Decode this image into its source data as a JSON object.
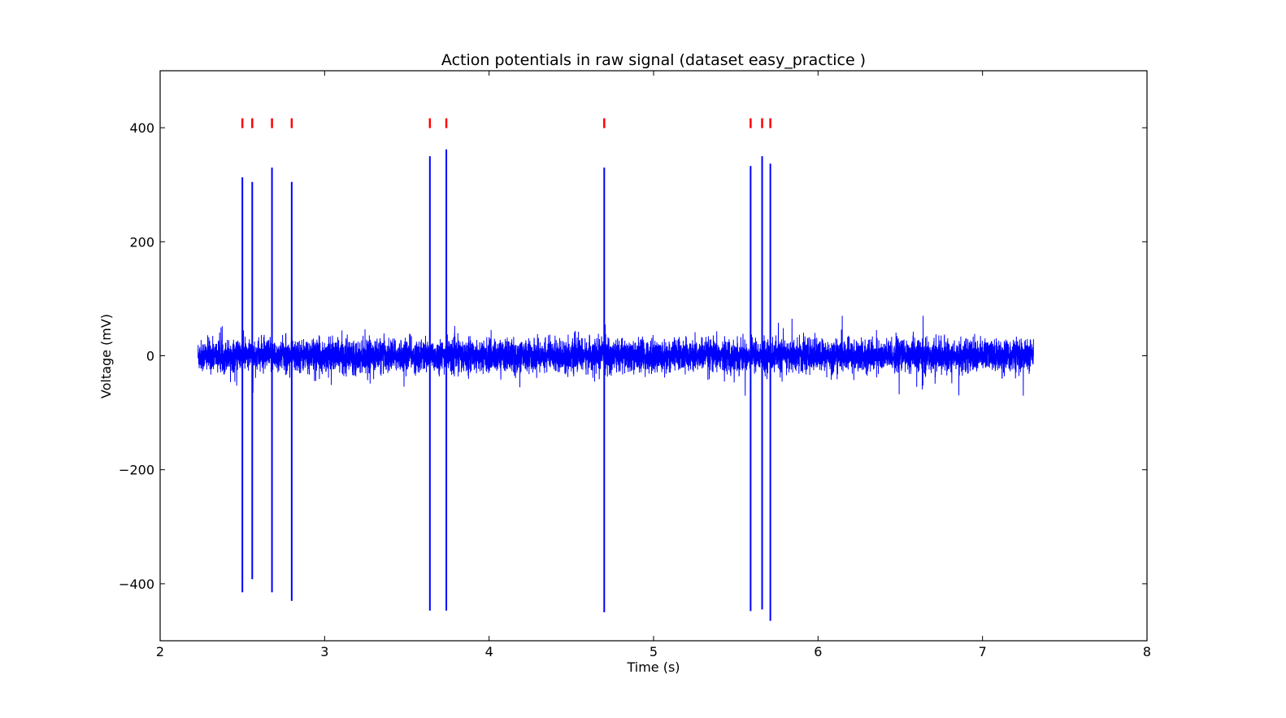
{
  "chart_data": {
    "type": "line",
    "title": "Action potentials in raw signal (dataset easy_practice )",
    "xlabel": "Time (s)",
    "ylabel": "Voltage (mV)",
    "xlim": [
      2,
      8
    ],
    "ylim": [
      -500,
      500
    ],
    "xticks": [
      2,
      3,
      4,
      5,
      6,
      7,
      8
    ],
    "yticks": [
      -400,
      -200,
      0,
      200,
      400
    ],
    "xtick_labels": [
      "2",
      "3",
      "4",
      "5",
      "6",
      "7",
      "8"
    ],
    "ytick_labels": [
      "−400",
      "−200",
      "0",
      "200",
      "400"
    ],
    "grid": false,
    "series": [
      {
        "kind": "raw-signal",
        "color": "#0000ff",
        "x_range": [
          2.23,
          7.31
        ],
        "baseline_noise_typical_mV": 30,
        "baseline_noise_peak_mV": 70,
        "spikes": [
          {
            "t": 2.5,
            "max": 313,
            "min": -415
          },
          {
            "t": 2.56,
            "max": 305,
            "min": -392
          },
          {
            "t": 2.68,
            "max": 330,
            "min": -415
          },
          {
            "t": 2.8,
            "max": 305,
            "min": -430
          },
          {
            "t": 3.64,
            "max": 350,
            "min": -447
          },
          {
            "t": 3.74,
            "max": 362,
            "min": -447
          },
          {
            "t": 4.7,
            "max": 330,
            "min": -450
          },
          {
            "t": 5.59,
            "max": 333,
            "min": -448
          },
          {
            "t": 5.66,
            "max": 350,
            "min": -445
          },
          {
            "t": 5.71,
            "max": 337,
            "min": -465
          }
        ]
      },
      {
        "kind": "spike-markers",
        "color": "#ff0000",
        "y": 408,
        "times": [
          2.5,
          2.56,
          2.68,
          2.8,
          3.64,
          3.74,
          4.7,
          5.59,
          5.66,
          5.71
        ]
      }
    ]
  }
}
